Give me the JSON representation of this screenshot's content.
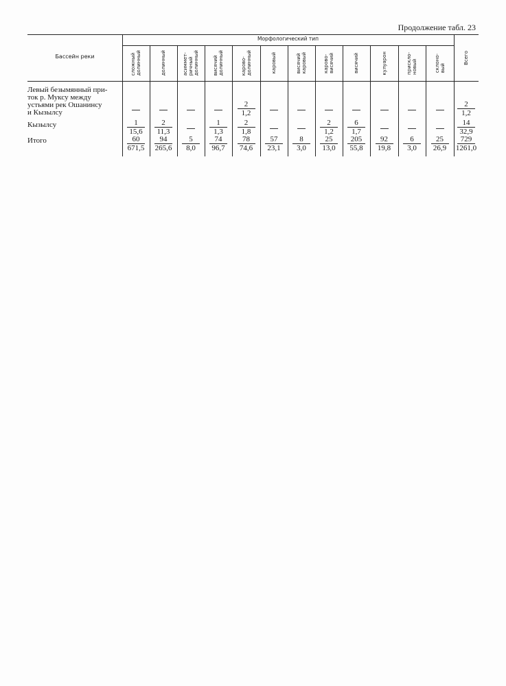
{
  "caption": "Продолжение табл. 23",
  "header": {
    "basin": "Бассейн реки",
    "group": "Морфологический тип",
    "columns": [
      "сложный\nдолинный",
      "долинный",
      "асиммет-\nричный\nдолинный",
      "висячий\nдолинный",
      "карово-\nдолинный",
      "каровый",
      "висячий\nкаровый",
      "карово-\nвисячий",
      "висячий",
      "кулуарон",
      "прискло-\nновый",
      "склоно-\nвый"
    ],
    "total": "Всего"
  },
  "rows": [
    {
      "label": "Левый безымянный при-\nток р. Муксу между\nустьями рек Ошанинсу\nи Кызылсу",
      "cells": [
        null,
        null,
        null,
        null,
        {
          "n": "2",
          "d": "1,2"
        },
        null,
        null,
        null,
        null,
        null,
        null,
        null,
        {
          "n": "2",
          "d": "1,2"
        }
      ]
    },
    {
      "label": "Кызылсу",
      "cells": [
        {
          "n": "1",
          "d": "15,6"
        },
        {
          "n": "2",
          "d": "11,3"
        },
        null,
        {
          "n": "1",
          "d": "1,3"
        },
        {
          "n": "2",
          "d": "1,8"
        },
        null,
        null,
        {
          "n": "2",
          "d": "1,2"
        },
        {
          "n": "6",
          "d": "1,7"
        },
        null,
        null,
        null,
        {
          "n": "14",
          "d": "32,9"
        }
      ]
    },
    {
      "label": "Итого",
      "cells": [
        {
          "n": "60",
          "d": "671,5"
        },
        {
          "n": "94",
          "d": "265,6"
        },
        {
          "n": "5",
          "d": "8,0"
        },
        {
          "n": "74",
          "d": "96,7"
        },
        {
          "n": "78",
          "d": "74,6"
        },
        {
          "n": "57",
          "d": "23,1"
        },
        {
          "n": "8",
          "d": "3,0"
        },
        {
          "n": "25",
          "d": "13,0"
        },
        {
          "n": "205",
          "d": "55,8"
        },
        {
          "n": "92",
          "d": "19,8"
        },
        {
          "n": "6",
          "d": "3,0"
        },
        {
          "n": "25",
          "d": "26,9"
        },
        {
          "n": "729",
          "d": "1261,0"
        }
      ]
    }
  ]
}
